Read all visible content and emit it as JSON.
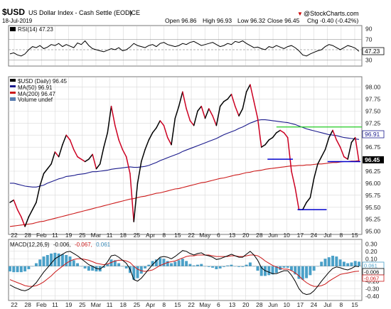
{
  "header": {
    "symbol": "$USD",
    "name": "US Dollar Index - Cash Settle (EOD)",
    "exchange": "ICE",
    "date": "18-Jul-2019",
    "open": "Open 96.86",
    "high": "High 96.93",
    "low": "Low 96.32",
    "close": "Close 96.45",
    "chg": "Chg -0.40 (-0.42%)",
    "chg_arrow": "▼",
    "source": "@StockCharts.com"
  },
  "colors": {
    "price": "#000000",
    "price_down": "#cc0022",
    "ma50": "#1a1a8c",
    "ma200": "#cc1a1a",
    "green_line": "#22cc22",
    "support_line": "#0000cc",
    "macd": "#000000",
    "signal": "#cc1a1a",
    "histogram": "#4aa0c8",
    "grid": "#d8d8d8",
    "price_tag": "#000000"
  },
  "legend": {
    "price": "$USD (Daily) 96.45",
    "ma50": "MA(50) 96.91",
    "ma200": "MA(200) 96.47",
    "volume": "Volume undef"
  },
  "rsi_label": "RSI(14) 47.23",
  "rsi_tag": "47.23",
  "price_tag_ma50": "96.91",
  "price_tag_close": "96.45",
  "macd_label_prefix": "MACD(12,26,9)",
  "macd_label_macd": "-0.006,",
  "macd_label_signal": "-0.067,",
  "macd_label_hist": "0.061",
  "macd_tags": [
    "0.061",
    "-0.006",
    "-0.067"
  ],
  "chart_data": [
    {
      "type": "line",
      "title": "RSI(14) 47.23",
      "yticks": [
        90,
        70,
        50,
        30
      ],
      "ylim": [
        20,
        95
      ],
      "reference_lines": [
        70,
        50,
        30
      ],
      "series": [
        {
          "name": "RSI(14)",
          "values": [
            42,
            44,
            40,
            38,
            42,
            50,
            56,
            54,
            58,
            52,
            55,
            60,
            58,
            62,
            56,
            60,
            57,
            54,
            63,
            60,
            67,
            58,
            52,
            50,
            48,
            46,
            49,
            52,
            50,
            54,
            48,
            50,
            55,
            62,
            58,
            56,
            54,
            58,
            60,
            56,
            62,
            64,
            60,
            58,
            56,
            58,
            62,
            60,
            64,
            66,
            62,
            58,
            60,
            62,
            64,
            60,
            56,
            58,
            62,
            60,
            66,
            64,
            67,
            62,
            58,
            54,
            55,
            52,
            50,
            56,
            54,
            58,
            55,
            52,
            56,
            58,
            54,
            48,
            40,
            38,
            42,
            45,
            48,
            50,
            56,
            60,
            58,
            54,
            50,
            54,
            58,
            56,
            53,
            47
          ]
        }
      ]
    },
    {
      "type": "line",
      "title": "$USD (Daily) 96.45",
      "yticks": [
        98.0,
        97.75,
        97.5,
        97.25,
        97.0,
        96.75,
        96.5,
        96.25,
        96.0,
        95.75,
        95.5,
        95.25,
        95.0
      ],
      "ylim": [
        94.95,
        98.2
      ],
      "x_labels": [
        "22",
        "28",
        "Feb",
        "11",
        "19",
        "25",
        "Mar",
        "11",
        "18",
        "25",
        "Apr",
        "8",
        "15",
        "22",
        "May",
        "6",
        "13",
        "20",
        "28",
        "Jun",
        "10",
        "17",
        "24",
        "Jul",
        "8",
        "15"
      ],
      "series": [
        {
          "name": "$USD (Daily)",
          "values": [
            95.6,
            95.65,
            95.45,
            95.3,
            95.1,
            95.3,
            95.45,
            95.6,
            95.95,
            96.2,
            96.3,
            96.4,
            96.65,
            96.55,
            96.8,
            97.0,
            96.9,
            96.7,
            96.55,
            96.5,
            96.45,
            96.5,
            96.6,
            96.3,
            96.4,
            96.75,
            97.05,
            97.6,
            97.2,
            96.9,
            96.7,
            96.55,
            96.2,
            95.2,
            96.0,
            96.45,
            96.7,
            96.9,
            97.05,
            97.15,
            97.3,
            97.2,
            96.95,
            96.8,
            97.35,
            97.6,
            97.9,
            97.55,
            97.3,
            97.2,
            97.5,
            97.6,
            97.35,
            97.55,
            97.4,
            97.2,
            97.6,
            97.7,
            97.75,
            97.85,
            97.6,
            97.4,
            97.55,
            97.9,
            98.05,
            97.7,
            97.35,
            96.75,
            96.8,
            96.9,
            96.95,
            97.05,
            97.1,
            97.05,
            96.95,
            96.25,
            95.9,
            95.45,
            95.45,
            95.6,
            95.7,
            96.1,
            96.4,
            96.55,
            96.7,
            96.95,
            97.1,
            96.9,
            96.75,
            96.55,
            96.5,
            96.85,
            96.95,
            96.45
          ]
        },
        {
          "name": "MA(50)",
          "values": [
            96.0,
            96.0,
            95.98,
            95.96,
            95.94,
            95.93,
            95.92,
            95.92,
            95.94,
            95.96,
            96.0,
            96.03,
            96.06,
            96.09,
            96.11,
            96.14,
            96.15,
            96.16,
            96.18,
            96.19,
            96.2,
            96.22,
            96.24,
            96.24,
            96.25,
            96.26,
            96.27,
            96.29,
            96.3,
            96.31,
            96.32,
            96.33,
            96.34,
            96.33,
            96.33,
            96.34,
            96.35,
            96.37,
            96.4,
            96.43,
            96.47,
            96.5,
            96.53,
            96.56,
            96.59,
            96.62,
            96.66,
            96.69,
            96.72,
            96.75,
            96.78,
            96.81,
            96.84,
            96.87,
            96.9,
            96.93,
            96.97,
            97.01,
            97.04,
            97.07,
            97.1,
            97.14,
            97.17,
            97.21,
            97.25,
            97.28,
            97.31,
            97.32,
            97.32,
            97.31,
            97.3,
            97.29,
            97.28,
            97.27,
            97.26,
            97.24,
            97.22,
            97.19,
            97.16,
            97.13,
            97.11,
            97.09,
            97.07,
            97.05,
            97.03,
            97.01,
            97.0,
            96.99,
            96.97,
            96.95,
            96.94,
            96.93,
            96.92,
            96.91
          ]
        },
        {
          "name": "MA(200)",
          "values": [
            95.1,
            95.11,
            95.12,
            95.13,
            95.14,
            95.15,
            95.16,
            95.18,
            95.2,
            95.21,
            95.23,
            95.25,
            95.27,
            95.29,
            95.31,
            95.33,
            95.35,
            95.37,
            95.39,
            95.41,
            95.43,
            95.45,
            95.47,
            95.49,
            95.51,
            95.53,
            95.55,
            95.57,
            95.59,
            95.61,
            95.63,
            95.65,
            95.67,
            95.68,
            95.7,
            95.72,
            95.73,
            95.75,
            95.77,
            95.79,
            95.8,
            95.82,
            95.84,
            95.86,
            95.88,
            95.89,
            95.91,
            95.93,
            95.95,
            95.97,
            95.99,
            96.01,
            96.02,
            96.04,
            96.06,
            96.08,
            96.1,
            96.11,
            96.13,
            96.15,
            96.17,
            96.18,
            96.2,
            96.22,
            96.23,
            96.25,
            96.26,
            96.27,
            96.29,
            96.3,
            96.31,
            96.32,
            96.33,
            96.34,
            96.35,
            96.36,
            96.36,
            96.37,
            96.37,
            96.38,
            96.38,
            96.39,
            96.4,
            96.4,
            96.41,
            96.42,
            96.43,
            96.43,
            96.44,
            96.45,
            96.45,
            96.46,
            96.46,
            96.47
          ]
        }
      ],
      "annotations": {
        "resistance": {
          "y": 97.17,
          "from_index": 71,
          "to_index": 93
        },
        "supports": [
          {
            "y": 96.5,
            "from_index": 69,
            "to_index": 75
          },
          {
            "y": 95.45,
            "from_index": 77,
            "to_index": 84
          },
          {
            "y": 96.45,
            "from_index": 85,
            "to_index": 93
          }
        ]
      }
    },
    {
      "type": "line",
      "title": "MACD(12,26,9) -0.006, -0.067, 0.061",
      "yticks": [
        0.3,
        0.2,
        0.1,
        0.0,
        -0.1,
        -0.2,
        -0.3,
        -0.4
      ],
      "ylim": [
        -0.45,
        0.35
      ],
      "x_labels": [
        "22",
        "28",
        "Feb",
        "11",
        "19",
        "25",
        "Mar",
        "11",
        "18",
        "25",
        "Apr",
        "8",
        "15",
        "22",
        "May",
        "6",
        "13",
        "20",
        "28",
        "Jun",
        "10",
        "17",
        "24",
        "Jul",
        "8",
        "15"
      ],
      "series": [
        {
          "name": "MACD",
          "values": [
            -0.25,
            -0.28,
            -0.3,
            -0.32,
            -0.33,
            -0.31,
            -0.27,
            -0.22,
            -0.15,
            -0.08,
            -0.02,
            0.04,
            0.1,
            0.13,
            0.16,
            0.19,
            0.2,
            0.17,
            0.14,
            0.1,
            0.06,
            0.02,
            0.0,
            -0.03,
            -0.04,
            0.0,
            0.06,
            0.14,
            0.15,
            0.12,
            0.08,
            0.04,
            -0.04,
            -0.18,
            -0.2,
            -0.16,
            -0.1,
            -0.04,
            0.02,
            0.07,
            0.12,
            0.13,
            0.12,
            0.1,
            0.13,
            0.17,
            0.21,
            0.2,
            0.17,
            0.15,
            0.17,
            0.18,
            0.15,
            0.14,
            0.12,
            0.09,
            0.1,
            0.12,
            0.14,
            0.16,
            0.14,
            0.12,
            0.12,
            0.16,
            0.2,
            0.15,
            0.08,
            -0.02,
            -0.06,
            -0.08,
            -0.1,
            -0.1,
            -0.08,
            -0.06,
            -0.06,
            -0.12,
            -0.2,
            -0.3,
            -0.36,
            -0.38,
            -0.37,
            -0.33,
            -0.27,
            -0.2,
            -0.14,
            -0.08,
            -0.03,
            -0.01,
            -0.02,
            -0.04,
            -0.05,
            -0.03,
            0.0,
            -0.006
          ]
        },
        {
          "name": "Signal",
          "values": [
            -0.18,
            -0.2,
            -0.22,
            -0.24,
            -0.26,
            -0.27,
            -0.27,
            -0.26,
            -0.24,
            -0.21,
            -0.17,
            -0.13,
            -0.08,
            -0.04,
            0.0,
            0.04,
            0.07,
            0.09,
            0.1,
            0.1,
            0.09,
            0.08,
            0.06,
            0.04,
            0.03,
            0.02,
            0.03,
            0.05,
            0.07,
            0.08,
            0.08,
            0.07,
            0.05,
            0.0,
            -0.04,
            -0.06,
            -0.07,
            -0.06,
            -0.05,
            -0.02,
            0.01,
            0.03,
            0.05,
            0.06,
            0.07,
            0.09,
            0.11,
            0.13,
            0.14,
            0.14,
            0.15,
            0.15,
            0.15,
            0.15,
            0.14,
            0.13,
            0.13,
            0.13,
            0.13,
            0.14,
            0.14,
            0.13,
            0.13,
            0.14,
            0.15,
            0.15,
            0.14,
            0.11,
            0.07,
            0.04,
            0.01,
            -0.01,
            -0.03,
            -0.04,
            -0.04,
            -0.06,
            -0.09,
            -0.13,
            -0.18,
            -0.22,
            -0.25,
            -0.27,
            -0.27,
            -0.26,
            -0.24,
            -0.2,
            -0.17,
            -0.14,
            -0.11,
            -0.1,
            -0.09,
            -0.08,
            -0.07,
            -0.067
          ]
        }
      ]
    }
  ]
}
